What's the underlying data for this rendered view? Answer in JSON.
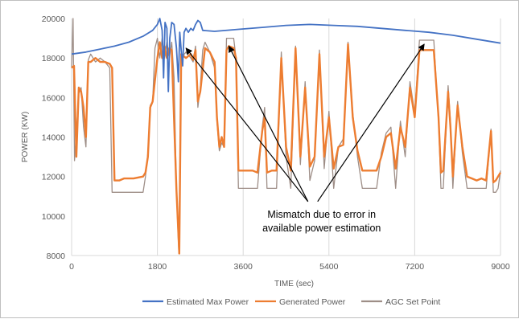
{
  "chart_data": {
    "type": "line",
    "xlabel": "TIME (sec)",
    "ylabel": "POWER (KW)",
    "xlim": [
      0,
      9000
    ],
    "ylim": [
      8000,
      20000
    ],
    "x_ticks": [
      0,
      1800,
      3600,
      5400,
      7200,
      9000
    ],
    "y_ticks": [
      8000,
      10000,
      12000,
      14000,
      16000,
      18000,
      20000
    ],
    "grid": "vertical",
    "legend": "bottom",
    "annotation": {
      "lines": [
        "Mismatch due to error in",
        "available power estimation"
      ],
      "x": 5500,
      "y": 10000,
      "arrow_targets": [
        [
          2400,
          18500
        ],
        [
          3300,
          18600
        ],
        [
          7400,
          18700
        ]
      ]
    },
    "series": [
      {
        "name": "Estimated Max Power",
        "color": "#4472c4",
        "points": [
          [
            0,
            18200
          ],
          [
            300,
            18300
          ],
          [
            600,
            18450
          ],
          [
            900,
            18600
          ],
          [
            1200,
            18800
          ],
          [
            1500,
            19100
          ],
          [
            1700,
            19400
          ],
          [
            1800,
            19700
          ],
          [
            1850,
            20000
          ],
          [
            1900,
            19400
          ],
          [
            1930,
            17000
          ],
          [
            1960,
            19800
          ],
          [
            2000,
            19500
          ],
          [
            2030,
            16300
          ],
          [
            2060,
            19000
          ],
          [
            2100,
            19800
          ],
          [
            2150,
            19700
          ],
          [
            2200,
            18500
          ],
          [
            2240,
            16800
          ],
          [
            2270,
            19300
          ],
          [
            2300,
            18400
          ],
          [
            2330,
            17600
          ],
          [
            2360,
            19300
          ],
          [
            2400,
            19500
          ],
          [
            2450,
            19300
          ],
          [
            2500,
            19500
          ],
          [
            2550,
            19400
          ],
          [
            2600,
            19700
          ],
          [
            2650,
            19900
          ],
          [
            2700,
            19800
          ],
          [
            2750,
            19400
          ],
          [
            3000,
            19350
          ],
          [
            3500,
            19450
          ],
          [
            4000,
            19550
          ],
          [
            4500,
            19650
          ],
          [
            5000,
            19700
          ],
          [
            5500,
            19650
          ],
          [
            6000,
            19600
          ],
          [
            6500,
            19500
          ],
          [
            7000,
            19400
          ],
          [
            7500,
            19300
          ],
          [
            8000,
            19150
          ],
          [
            8500,
            18950
          ],
          [
            9000,
            18750
          ]
        ]
      },
      {
        "name": "Generated Power",
        "color": "#ed7d31",
        "points": [
          [
            0,
            17500
          ],
          [
            50,
            17600
          ],
          [
            100,
            13000
          ],
          [
            150,
            16500
          ],
          [
            200,
            16300
          ],
          [
            250,
            15500
          ],
          [
            300,
            14000
          ],
          [
            350,
            17800
          ],
          [
            400,
            17800
          ],
          [
            500,
            18000
          ],
          [
            600,
            17800
          ],
          [
            700,
            17800
          ],
          [
            800,
            17700
          ],
          [
            850,
            17500
          ],
          [
            900,
            11800
          ],
          [
            1000,
            11800
          ],
          [
            1100,
            11900
          ],
          [
            1200,
            11900
          ],
          [
            1300,
            11900
          ],
          [
            1500,
            12000
          ],
          [
            1550,
            12200
          ],
          [
            1600,
            13000
          ],
          [
            1650,
            15500
          ],
          [
            1700,
            15800
          ],
          [
            1800,
            18000
          ],
          [
            1850,
            18800
          ],
          [
            1900,
            18000
          ],
          [
            1950,
            18600
          ],
          [
            2000,
            18000
          ],
          [
            2050,
            18500
          ],
          [
            2100,
            18400
          ],
          [
            2200,
            11300
          ],
          [
            2260,
            8100
          ],
          [
            2300,
            18200
          ],
          [
            2400,
            18000
          ],
          [
            2500,
            18200
          ],
          [
            2550,
            17900
          ],
          [
            2600,
            18400
          ],
          [
            2650,
            15800
          ],
          [
            2700,
            16300
          ],
          [
            2800,
            18500
          ],
          [
            2900,
            18300
          ],
          [
            3000,
            17800
          ],
          [
            3050,
            15000
          ],
          [
            3100,
            13500
          ],
          [
            3150,
            14000
          ],
          [
            3200,
            13500
          ],
          [
            3250,
            18400
          ],
          [
            3300,
            18600
          ],
          [
            3400,
            18500
          ],
          [
            3450,
            18000
          ],
          [
            3500,
            12300
          ],
          [
            3600,
            12300
          ],
          [
            3700,
            12300
          ],
          [
            3800,
            12300
          ],
          [
            3900,
            12200
          ],
          [
            4000,
            14300
          ],
          [
            4050,
            15000
          ],
          [
            4100,
            12200
          ],
          [
            4200,
            12300
          ],
          [
            4300,
            12300
          ],
          [
            4400,
            18000
          ],
          [
            4500,
            13500
          ],
          [
            4600,
            12300
          ],
          [
            4700,
            18500
          ],
          [
            4800,
            13000
          ],
          [
            4900,
            16500
          ],
          [
            5000,
            12500
          ],
          [
            5100,
            13000
          ],
          [
            5200,
            18200
          ],
          [
            5300,
            13000
          ],
          [
            5400,
            15000
          ],
          [
            5500,
            12400
          ],
          [
            5600,
            13500
          ],
          [
            5700,
            13600
          ],
          [
            5800,
            18700
          ],
          [
            5900,
            15000
          ],
          [
            6000,
            13300
          ],
          [
            6100,
            12300
          ],
          [
            6200,
            12300
          ],
          [
            6300,
            12300
          ],
          [
            6400,
            12300
          ],
          [
            6500,
            13000
          ],
          [
            6600,
            14000
          ],
          [
            6700,
            14200
          ],
          [
            6800,
            12400
          ],
          [
            6900,
            14500
          ],
          [
            7000,
            13500
          ],
          [
            7100,
            16500
          ],
          [
            7200,
            15000
          ],
          [
            7300,
            18400
          ],
          [
            7400,
            18400
          ],
          [
            7500,
            18400
          ],
          [
            7600,
            18400
          ],
          [
            7700,
            15000
          ],
          [
            7750,
            12200
          ],
          [
            7800,
            12300
          ],
          [
            7900,
            16300
          ],
          [
            7950,
            14500
          ],
          [
            8000,
            12000
          ],
          [
            8100,
            15600
          ],
          [
            8200,
            13500
          ],
          [
            8300,
            12000
          ],
          [
            8400,
            11900
          ],
          [
            8500,
            11800
          ],
          [
            8600,
            11900
          ],
          [
            8700,
            11800
          ],
          [
            8800,
            14300
          ],
          [
            8850,
            11700
          ],
          [
            8900,
            11800
          ],
          [
            8950,
            12000
          ],
          [
            9000,
            12200
          ]
        ]
      },
      {
        "name": "AGC Set Point",
        "color": "#9e8e87",
        "points": [
          [
            0,
            17500
          ],
          [
            30,
            20000
          ],
          [
            60,
            12800
          ],
          [
            120,
            15000
          ],
          [
            150,
            16200
          ],
          [
            200,
            16500
          ],
          [
            250,
            14500
          ],
          [
            300,
            13500
          ],
          [
            350,
            17900
          ],
          [
            400,
            18200
          ],
          [
            500,
            17800
          ],
          [
            600,
            18000
          ],
          [
            700,
            17800
          ],
          [
            800,
            17500
          ],
          [
            850,
            11200
          ],
          [
            900,
            11200
          ],
          [
            1000,
            11200
          ],
          [
            1100,
            11200
          ],
          [
            1200,
            11200
          ],
          [
            1300,
            11200
          ],
          [
            1500,
            11200
          ],
          [
            1550,
            12000
          ],
          [
            1600,
            13200
          ],
          [
            1650,
            15600
          ],
          [
            1700,
            15800
          ],
          [
            1750,
            18500
          ],
          [
            1800,
            19000
          ],
          [
            1850,
            18000
          ],
          [
            1900,
            19000
          ],
          [
            1950,
            18000
          ],
          [
            2000,
            18800
          ],
          [
            2050,
            18000
          ],
          [
            2100,
            18800
          ],
          [
            2150,
            17000
          ],
          [
            2200,
            11200
          ],
          [
            2250,
            8100
          ],
          [
            2300,
            18000
          ],
          [
            2400,
            18300
          ],
          [
            2500,
            18000
          ],
          [
            2550,
            17800
          ],
          [
            2600,
            18600
          ],
          [
            2650,
            15500
          ],
          [
            2700,
            16500
          ],
          [
            2750,
            18400
          ],
          [
            2800,
            18800
          ],
          [
            2900,
            18300
          ],
          [
            3000,
            17500
          ],
          [
            3050,
            14800
          ],
          [
            3100,
            13300
          ],
          [
            3150,
            13700
          ],
          [
            3200,
            13500
          ],
          [
            3250,
            19000
          ],
          [
            3300,
            19000
          ],
          [
            3400,
            19000
          ],
          [
            3450,
            18000
          ],
          [
            3500,
            11400
          ],
          [
            3600,
            11400
          ],
          [
            3700,
            11400
          ],
          [
            3800,
            11400
          ],
          [
            3900,
            11400
          ],
          [
            4000,
            14500
          ],
          [
            4050,
            15500
          ],
          [
            4100,
            11400
          ],
          [
            4200,
            11400
          ],
          [
            4300,
            11400
          ],
          [
            4400,
            18300
          ],
          [
            4500,
            13000
          ],
          [
            4600,
            11400
          ],
          [
            4700,
            18600
          ],
          [
            4800,
            12600
          ],
          [
            4900,
            16800
          ],
          [
            5000,
            11800
          ],
          [
            5100,
            12800
          ],
          [
            5200,
            18400
          ],
          [
            5300,
            12400
          ],
          [
            5400,
            15300
          ],
          [
            5500,
            11400
          ],
          [
            5600,
            13500
          ],
          [
            5700,
            13900
          ],
          [
            5800,
            18800
          ],
          [
            5900,
            15200
          ],
          [
            6000,
            13000
          ],
          [
            6100,
            11400
          ],
          [
            6200,
            11400
          ],
          [
            6300,
            11400
          ],
          [
            6400,
            11400
          ],
          [
            6500,
            13200
          ],
          [
            6600,
            14200
          ],
          [
            6700,
            14500
          ],
          [
            6800,
            11400
          ],
          [
            6900,
            14800
          ],
          [
            7000,
            13000
          ],
          [
            7100,
            16800
          ],
          [
            7200,
            15200
          ],
          [
            7300,
            18900
          ],
          [
            7400,
            18900
          ],
          [
            7500,
            18900
          ],
          [
            7600,
            18900
          ],
          [
            7700,
            14800
          ],
          [
            7750,
            11400
          ],
          [
            7800,
            11400
          ],
          [
            7900,
            16600
          ],
          [
            7950,
            14800
          ],
          [
            8000,
            11400
          ],
          [
            8100,
            15800
          ],
          [
            8200,
            13200
          ],
          [
            8300,
            11400
          ],
          [
            8400,
            11400
          ],
          [
            8500,
            11400
          ],
          [
            8600,
            11400
          ],
          [
            8700,
            11400
          ],
          [
            8800,
            14400
          ],
          [
            8850,
            11200
          ],
          [
            8900,
            11200
          ],
          [
            8950,
            11400
          ],
          [
            9000,
            12300
          ]
        ]
      }
    ]
  }
}
